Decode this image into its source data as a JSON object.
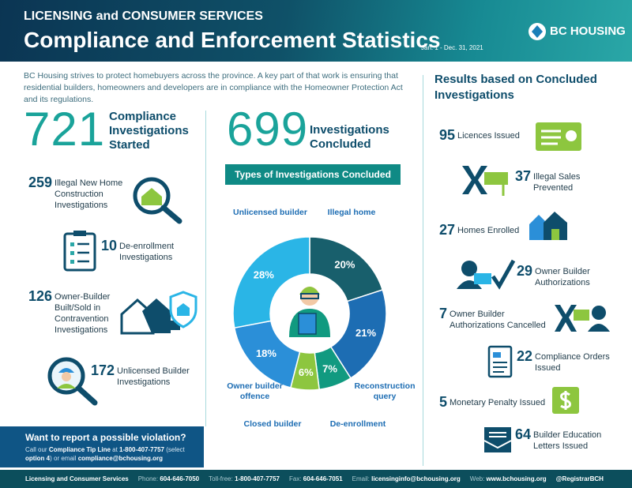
{
  "header": {
    "kicker": "LICENSING and CONSUMER SERVICES",
    "title": "Compliance and Enforcement Statistics",
    "period": "Jan. 1 - Dec. 31, 2021",
    "logo": "BC HOUSING"
  },
  "intro": "BC Housing strives to protect homebuyers across the province. A key part of that work is ensuring that residential builders, homeowners and developers are in compliance with the Homeowner Protection Act and its regulations.",
  "started": {
    "value": "721",
    "label": "Compliance Investigations Started"
  },
  "started_items": [
    {
      "value": "259",
      "label": "Illegal New Home Construction Investigations"
    },
    {
      "value": "10",
      "label": "De-enrollment Investigations"
    },
    {
      "value": "126",
      "label": "Owner-Builder Built/Sold in Contravention Investigations"
    },
    {
      "value": "172",
      "label": "Unlicensed Builder Investigations"
    }
  ],
  "concluded": {
    "value": "699",
    "label": "Investigations Concluded"
  },
  "chart_data": {
    "type": "donut",
    "title": "Types of Investigations Concluded",
    "categories": [
      "Illegal home",
      "Reconstruction query",
      "De-enrollment",
      "Closed builder",
      "Owner builder offence",
      "Unlicensed builder"
    ],
    "values": [
      20,
      21,
      7,
      6,
      18,
      28
    ],
    "value_labels": [
      "20%",
      "21%",
      "7%",
      "6%",
      "18%",
      "28%"
    ],
    "colors": [
      "#185f6c",
      "#1d6db3",
      "#119a80",
      "#8dc63f",
      "#2b8fd8",
      "#2ab5e6"
    ]
  },
  "results": {
    "title": "Results based on Concluded Investigations",
    "items": [
      {
        "value": "95",
        "label": "Licences Issued"
      },
      {
        "value": "37",
        "label": "Illegal Sales Prevented"
      },
      {
        "value": "27",
        "label": "Homes Enrolled"
      },
      {
        "value": "29",
        "label": "Owner Builder Authorizations"
      },
      {
        "value": "7",
        "label": "Owner Builder Authorizations Cancelled"
      },
      {
        "value": "22",
        "label": "Compliance Orders Issued"
      },
      {
        "value": "5",
        "label": "Monetary Penalty Issued"
      },
      {
        "value": "64",
        "label": "Builder Education Letters Issued"
      }
    ]
  },
  "report": {
    "title": "Want to report a possible violation?",
    "text": [
      "Call our",
      "Compliance Tip Line",
      "at",
      "1-800-407-7757",
      "(select",
      "option 4",
      ") or email",
      "compliance@bchousing.org"
    ]
  },
  "footer": {
    "org": "Licensing and Consumer Services",
    "contacts": [
      {
        "label": "Phone:",
        "value": "604-646-7050"
      },
      {
        "label": "Toll-free:",
        "value": "1-800-407-7757"
      },
      {
        "label": "Fax:",
        "value": "604-646-7051"
      },
      {
        "label": "Email:",
        "value": "licensinginfo@bchousing.org"
      },
      {
        "label": "Web:",
        "value": "www.bchousing.org"
      }
    ],
    "twitter": "@RegistrarBCH"
  }
}
